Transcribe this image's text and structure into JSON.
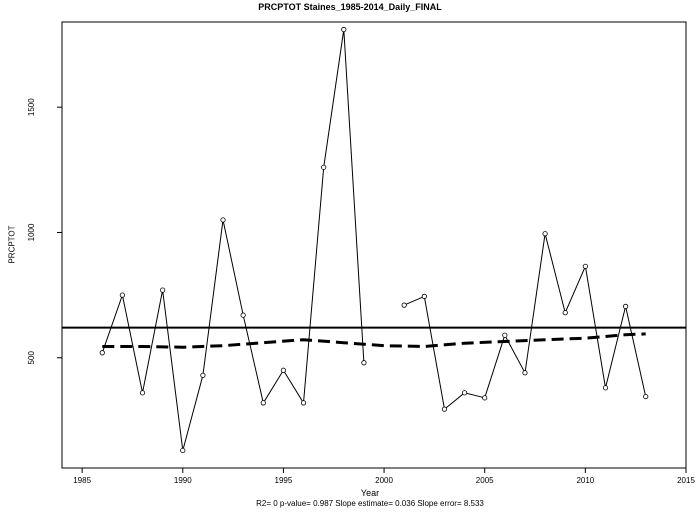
{
  "chart_data": {
    "type": "line",
    "title": "PRCPTOT   Staines_1985-2014_Daily_FINAL",
    "xlabel": "Year",
    "ylabel": "PRCPTOT",
    "stats_text": "R2= 0  p-value= 0.987  Slope estimate= 0.036  Slope error= 8.533",
    "xlim": [
      1984,
      2015
    ],
    "ylim": [
      60,
      1840
    ],
    "x_ticks": [
      1985,
      1990,
      1995,
      2000,
      2005,
      2010,
      2015
    ],
    "y_ticks": [
      500,
      1000,
      1500
    ],
    "series": [
      {
        "style": "solid-with-points",
        "x": [
          1986,
          1987,
          1988,
          1989,
          1990,
          1991,
          1992,
          1993,
          1994,
          1995,
          1996,
          1997,
          1998,
          1999,
          2000,
          2001,
          2002,
          2003,
          2004,
          2005,
          2006,
          2007,
          2008,
          2009,
          2010,
          2011,
          2012,
          2013
        ],
        "y": [
          520,
          750,
          360,
          770,
          130,
          430,
          1050,
          670,
          320,
          450,
          320,
          1260,
          1810,
          480,
          null,
          710,
          745,
          295,
          360,
          340,
          590,
          440,
          995,
          680,
          865,
          380,
          705,
          345
        ]
      },
      {
        "style": "dashed-trend",
        "x": [
          1986,
          1988,
          1990,
          1992,
          1994,
          1996,
          1998,
          2000,
          2002,
          2004,
          2006,
          2008,
          2010,
          2012,
          2013
        ],
        "y": [
          545,
          545,
          542,
          548,
          560,
          572,
          560,
          548,
          545,
          558,
          565,
          572,
          578,
          592,
          595
        ]
      }
    ],
    "hline": 620
  }
}
